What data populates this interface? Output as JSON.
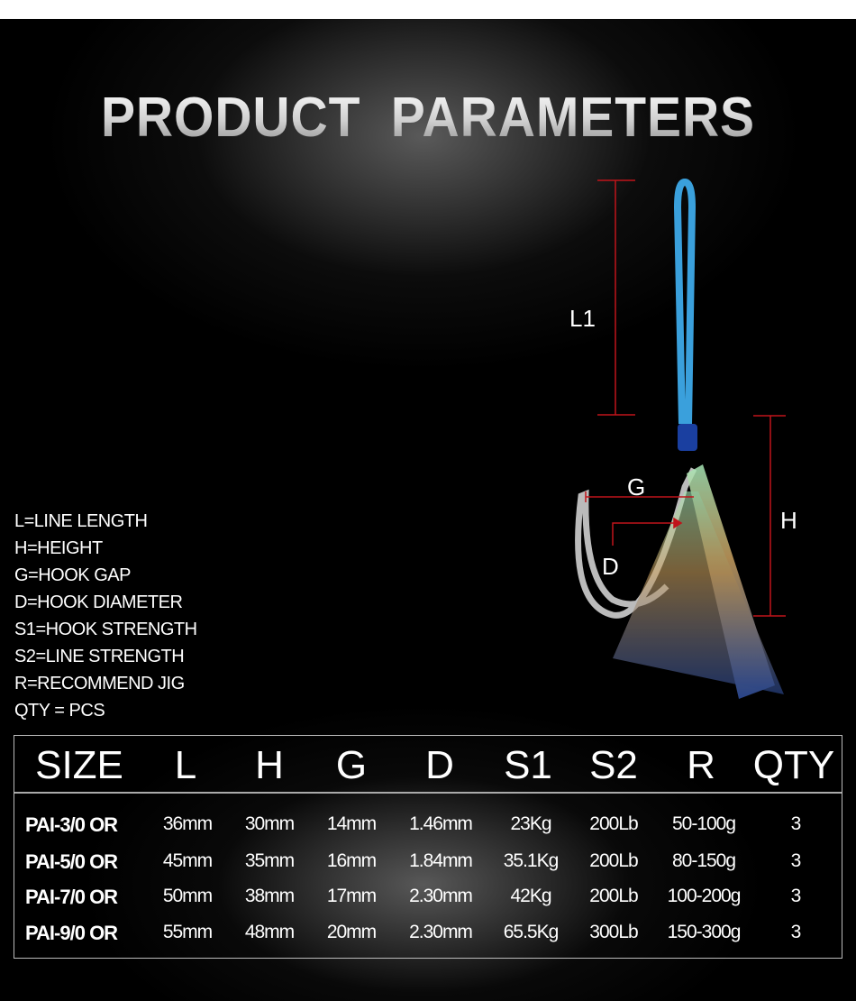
{
  "title": "PRODUCT  PARAMETERS",
  "legend": [
    "L=LINE LENGTH",
    "H=HEIGHT",
    "G=HOOK GAP",
    "D=HOOK DIAMETER",
    "S1=HOOK STRENGTH",
    "S2=LINE STRENGTH",
    "R=RECOMMEND JIG",
    "QTY = PCS"
  ],
  "diagram": {
    "l1": "L1",
    "h": "H",
    "g": "G",
    "d": "D",
    "dimension_color": "#c0141a",
    "rope_color": "#3aa0dc"
  },
  "table": {
    "headers": [
      "SIZE",
      "L",
      "H",
      "G",
      "D",
      "S1",
      "S2",
      "R",
      "QTY"
    ],
    "rows": [
      [
        "PAI-3/0 OR",
        "36mm",
        "30mm",
        "14mm",
        "1.46mm",
        "23Kg",
        "200Lb",
        "50-100g",
        "3"
      ],
      [
        "PAI-5/0 OR",
        "45mm",
        "35mm",
        "16mm",
        "1.84mm",
        "35.1Kg",
        "200Lb",
        "80-150g",
        "3"
      ],
      [
        "PAI-7/0 OR",
        "50mm",
        "38mm",
        "17mm",
        "2.30mm",
        "42Kg",
        "200Lb",
        "100-200g",
        "3"
      ],
      [
        "PAI-9/0 OR",
        "55mm",
        "48mm",
        "20mm",
        "2.30mm",
        "65.5Kg",
        "300Lb",
        "150-300g",
        "3"
      ]
    ]
  }
}
